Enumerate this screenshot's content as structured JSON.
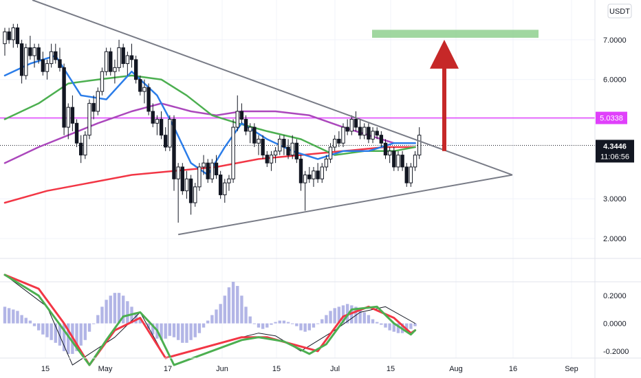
{
  "currency": "USDT",
  "last_price": "4.3446",
  "countdown": "11:06:56",
  "level_label": "5.0338",
  "colors": {
    "up": "#ffffff",
    "down": "#131722",
    "ema_blue": "#2b7de9",
    "ema_green": "#4caf50",
    "ema_purple": "#ab47bc",
    "ema_red": "#f23645",
    "level": "#e040fb",
    "target_zone": "#8fd08f",
    "arrow": "#c62828",
    "triangle": "#787b86",
    "macd": "#4caf50",
    "signal": "#f23645",
    "histogram": "#b2b5e6"
  },
  "time_axis": [
    "15",
    "May",
    "17",
    "Jun",
    "15",
    "Jul",
    "15",
    "Aug",
    "16",
    "Sep"
  ],
  "chart_data": [
    {
      "type": "candlestick",
      "y_ticks": [
        "7.0000",
        "6.0000",
        "5.0000",
        "3.0000",
        "2.0000"
      ],
      "ylim": [
        1.5,
        8.0
      ],
      "horizontal_level": 5.0338,
      "current_price": 4.3446,
      "target_zone": [
        7.05,
        7.25
      ],
      "triangle": {
        "upper": [
          [
            0,
            8.0
          ],
          [
            120,
            3.6
          ]
        ],
        "lower": [
          [
            41,
            2.1
          ],
          [
            120,
            3.6
          ]
        ]
      },
      "candles": [
        [
          6.9,
          7.3,
          6.6,
          7.2
        ],
        [
          7.2,
          7.3,
          6.9,
          7.0
        ],
        [
          7.0,
          7.4,
          6.8,
          7.3
        ],
        [
          7.3,
          7.4,
          6.8,
          6.9
        ],
        [
          6.9,
          7.0,
          5.9,
          6.1
        ],
        [
          6.1,
          6.9,
          6.0,
          6.8
        ],
        [
          6.8,
          7.1,
          6.5,
          6.6
        ],
        [
          6.6,
          6.9,
          6.3,
          6.8
        ],
        [
          6.8,
          6.9,
          6.4,
          6.5
        ],
        [
          6.5,
          6.7,
          6.1,
          6.2
        ],
        [
          6.2,
          6.5,
          6.0,
          6.4
        ],
        [
          6.4,
          6.9,
          6.3,
          6.7
        ],
        [
          6.7,
          6.9,
          6.4,
          6.5
        ],
        [
          6.5,
          6.8,
          6.2,
          6.3
        ],
        [
          6.3,
          6.4,
          4.6,
          4.8
        ],
        [
          4.8,
          5.4,
          4.5,
          5.3
        ],
        [
          5.3,
          5.6,
          4.7,
          4.9
        ],
        [
          4.9,
          5.0,
          4.3,
          4.4
        ],
        [
          4.4,
          4.6,
          3.9,
          4.1
        ],
        [
          4.1,
          4.7,
          4.0,
          4.6
        ],
        [
          4.6,
          5.5,
          4.5,
          5.4
        ],
        [
          5.4,
          5.6,
          5.0,
          5.2
        ],
        [
          5.2,
          5.8,
          5.1,
          5.7
        ],
        [
          5.7,
          6.3,
          5.6,
          6.2
        ],
        [
          6.2,
          6.8,
          6.1,
          6.7
        ],
        [
          6.7,
          6.8,
          6.1,
          6.2
        ],
        [
          6.2,
          6.5,
          5.9,
          6.3
        ],
        [
          6.3,
          7.0,
          6.2,
          6.8
        ],
        [
          6.8,
          6.9,
          6.3,
          6.4
        ],
        [
          6.4,
          6.7,
          6.1,
          6.6
        ],
        [
          6.6,
          6.9,
          6.3,
          6.5
        ],
        [
          6.5,
          6.6,
          5.9,
          6.0
        ],
        [
          6.0,
          6.1,
          5.6,
          5.7
        ],
        [
          5.7,
          6.0,
          5.4,
          5.8
        ],
        [
          5.8,
          5.9,
          5.1,
          5.2
        ],
        [
          5.2,
          5.4,
          4.8,
          4.9
        ],
        [
          4.9,
          5.1,
          4.6,
          5.0
        ],
        [
          5.0,
          5.2,
          4.5,
          4.6
        ],
        [
          4.6,
          4.8,
          4.2,
          4.3
        ],
        [
          4.3,
          5.1,
          4.2,
          5.0
        ],
        [
          5.0,
          5.1,
          3.2,
          3.5
        ],
        [
          3.5,
          3.9,
          2.4,
          3.8
        ],
        [
          3.8,
          3.9,
          3.1,
          3.2
        ],
        [
          3.2,
          3.7,
          3.0,
          3.5
        ],
        [
          3.5,
          3.6,
          2.6,
          2.9
        ],
        [
          2.9,
          3.4,
          2.8,
          3.3
        ],
        [
          3.3,
          3.9,
          3.2,
          3.8
        ],
        [
          3.8,
          4.1,
          3.6,
          3.9
        ],
        [
          3.9,
          4.0,
          3.4,
          3.5
        ],
        [
          3.5,
          4.0,
          3.4,
          3.9
        ],
        [
          3.9,
          4.1,
          3.5,
          3.6
        ],
        [
          3.6,
          3.7,
          3.0,
          3.1
        ],
        [
          3.1,
          3.5,
          2.9,
          3.4
        ],
        [
          3.4,
          3.6,
          3.2,
          3.5
        ],
        [
          3.5,
          5.0,
          3.4,
          4.8
        ],
        [
          4.8,
          5.6,
          4.7,
          5.2
        ],
        [
          5.2,
          5.4,
          4.9,
          5.0
        ],
        [
          5.0,
          5.1,
          4.6,
          4.7
        ],
        [
          4.7,
          4.9,
          4.4,
          4.8
        ],
        [
          4.8,
          4.9,
          4.3,
          4.4
        ],
        [
          4.4,
          4.6,
          4.1,
          4.5
        ],
        [
          4.5,
          4.6,
          4.0,
          4.1
        ],
        [
          4.1,
          4.2,
          3.8,
          3.9
        ],
        [
          3.9,
          4.2,
          3.7,
          4.1
        ],
        [
          4.1,
          4.3,
          3.9,
          4.2
        ],
        [
          4.2,
          4.6,
          4.1,
          4.5
        ],
        [
          4.5,
          4.6,
          4.1,
          4.3
        ],
        [
          4.3,
          4.5,
          4.0,
          4.1
        ],
        [
          4.1,
          4.6,
          4.0,
          4.4
        ],
        [
          4.4,
          4.5,
          3.9,
          4.0
        ],
        [
          4.0,
          4.1,
          3.2,
          3.4
        ],
        [
          3.4,
          3.7,
          2.7,
          3.6
        ],
        [
          3.6,
          3.8,
          3.4,
          3.5
        ],
        [
          3.5,
          3.8,
          3.3,
          3.7
        ],
        [
          3.7,
          3.9,
          3.4,
          3.5
        ],
        [
          3.5,
          3.9,
          3.4,
          3.8
        ],
        [
          3.8,
          4.1,
          3.7,
          4.0
        ],
        [
          4.0,
          4.4,
          3.9,
          4.3
        ],
        [
          4.3,
          4.6,
          4.2,
          4.5
        ],
        [
          4.5,
          4.7,
          4.3,
          4.4
        ],
        [
          4.4,
          4.9,
          4.3,
          4.8
        ],
        [
          4.8,
          5.0,
          4.6,
          4.7
        ],
        [
          4.7,
          5.1,
          4.6,
          5.0
        ],
        [
          5.0,
          5.2,
          4.7,
          4.8
        ],
        [
          4.8,
          5.0,
          4.5,
          4.6
        ],
        [
          4.6,
          4.9,
          4.5,
          4.8
        ],
        [
          4.8,
          4.9,
          4.4,
          4.5
        ],
        [
          4.5,
          4.8,
          4.4,
          4.7
        ],
        [
          4.7,
          4.8,
          4.5,
          4.6
        ],
        [
          4.6,
          4.7,
          4.3,
          4.4
        ],
        [
          4.4,
          4.5,
          4.0,
          4.1
        ],
        [
          4.1,
          4.3,
          3.9,
          4.2
        ],
        [
          4.2,
          4.3,
          3.7,
          3.8
        ],
        [
          3.8,
          4.2,
          3.7,
          4.1
        ],
        [
          4.1,
          4.2,
          3.7,
          3.8
        ],
        [
          3.8,
          3.9,
          3.3,
          3.4
        ],
        [
          3.4,
          3.9,
          3.3,
          3.8
        ],
        [
          3.8,
          4.2,
          3.7,
          4.1
        ],
        [
          4.1,
          4.8,
          4.0,
          4.6
        ]
      ],
      "ema_blue": [
        [
          0,
          6.1
        ],
        [
          6,
          6.4
        ],
        [
          12,
          6.6
        ],
        [
          18,
          5.6
        ],
        [
          24,
          5.5
        ],
        [
          30,
          6.2
        ],
        [
          36,
          5.6
        ],
        [
          40,
          4.8
        ],
        [
          44,
          3.9
        ],
        [
          48,
          3.6
        ],
        [
          52,
          4.3
        ],
        [
          56,
          4.9
        ],
        [
          62,
          4.5
        ],
        [
          68,
          4.2
        ],
        [
          74,
          4.0
        ],
        [
          80,
          4.2
        ],
        [
          86,
          4.2
        ],
        [
          92,
          4.4
        ],
        [
          97,
          4.4
        ]
      ],
      "ema_green": [
        [
          0,
          5.0
        ],
        [
          8,
          5.4
        ],
        [
          15,
          5.9
        ],
        [
          22,
          6.0
        ],
        [
          30,
          6.1
        ],
        [
          37,
          6.0
        ],
        [
          43,
          5.6
        ],
        [
          49,
          5.1
        ],
        [
          55,
          4.9
        ],
        [
          62,
          4.7
        ],
        [
          70,
          4.5
        ],
        [
          78,
          4.1
        ],
        [
          85,
          4.2
        ],
        [
          92,
          4.2
        ],
        [
          97,
          4.3
        ]
      ],
      "ema_purple": [
        [
          0,
          3.9
        ],
        [
          8,
          4.3
        ],
        [
          15,
          4.6
        ],
        [
          22,
          4.9
        ],
        [
          30,
          5.2
        ],
        [
          37,
          5.4
        ],
        [
          44,
          5.2
        ],
        [
          50,
          5.1
        ],
        [
          56,
          5.2
        ],
        [
          64,
          5.2
        ],
        [
          72,
          5.1
        ],
        [
          80,
          4.8
        ],
        [
          86,
          4.6
        ],
        [
          92,
          4.4
        ],
        [
          97,
          4.4
        ]
      ],
      "ema_red": [
        [
          0,
          2.9
        ],
        [
          10,
          3.2
        ],
        [
          20,
          3.4
        ],
        [
          30,
          3.6
        ],
        [
          40,
          3.7
        ],
        [
          50,
          3.8
        ],
        [
          60,
          4.0
        ],
        [
          70,
          4.1
        ],
        [
          80,
          4.2
        ],
        [
          90,
          4.3
        ],
        [
          97,
          4.3
        ]
      ]
    },
    {
      "type": "macd",
      "y_ticks": [
        "0.2000",
        "0.0000",
        "-0.2000"
      ],
      "ylim": [
        -0.25,
        0.3
      ],
      "histogram": [
        0.12,
        0.11,
        0.1,
        0.09,
        0.06,
        0.04,
        0.02,
        -0.02,
        -0.05,
        -0.08,
        -0.1,
        -0.12,
        -0.14,
        -0.16,
        -0.2,
        -0.22,
        -0.22,
        -0.2,
        -0.16,
        -0.12,
        -0.06,
        0.0,
        0.06,
        0.12,
        0.17,
        0.2,
        0.22,
        0.22,
        0.2,
        0.16,
        0.12,
        0.08,
        0.04,
        0.0,
        -0.04,
        -0.08,
        -0.11,
        -0.12,
        -0.11,
        -0.09,
        -0.1,
        -0.12,
        -0.14,
        -0.14,
        -0.12,
        -0.1,
        -0.07,
        -0.03,
        0.02,
        0.06,
        0.1,
        0.14,
        0.2,
        0.26,
        0.3,
        0.27,
        0.2,
        0.12,
        0.05,
        0.0,
        -0.03,
        -0.04,
        -0.03,
        -0.01,
        0.01,
        0.02,
        0.02,
        0.01,
        0.0,
        -0.02,
        -0.05,
        -0.06,
        -0.05,
        -0.03,
        0.0,
        0.03,
        0.06,
        0.09,
        0.11,
        0.12,
        0.13,
        0.14,
        0.13,
        0.12,
        0.1,
        0.08,
        0.06,
        0.03,
        0.01,
        -0.01,
        -0.03,
        -0.05,
        -0.06,
        -0.07,
        -0.07,
        -0.06,
        -0.04,
        -0.02
      ],
      "macd": [
        [
          0,
          0.4
        ],
        [
          8,
          0.2
        ],
        [
          14,
          -0.05
        ],
        [
          20,
          -0.3
        ],
        [
          24,
          -0.12
        ],
        [
          28,
          0.05
        ],
        [
          32,
          0.08
        ],
        [
          36,
          -0.05
        ],
        [
          40,
          -0.3
        ],
        [
          56,
          -0.12
        ],
        [
          60,
          -0.1
        ],
        [
          66,
          -0.13
        ],
        [
          72,
          -0.22
        ],
        [
          76,
          -0.15
        ],
        [
          82,
          0.1
        ],
        [
          88,
          0.12
        ],
        [
          92,
          0.0
        ],
        [
          96,
          -0.08
        ],
        [
          97,
          -0.05
        ]
      ],
      "signal": [
        [
          0,
          0.4
        ],
        [
          8,
          0.25
        ],
        [
          14,
          0.0
        ],
        [
          20,
          -0.3
        ],
        [
          26,
          -0.05
        ],
        [
          32,
          0.04
        ],
        [
          38,
          -0.25
        ],
        [
          56,
          -0.1
        ],
        [
          62,
          -0.1
        ],
        [
          68,
          -0.15
        ],
        [
          74,
          -0.2
        ],
        [
          80,
          0.05
        ],
        [
          86,
          0.12
        ],
        [
          92,
          0.04
        ],
        [
          96,
          -0.07
        ],
        [
          97,
          -0.05
        ]
      ],
      "slow_line": [
        [
          0,
          0.6
        ],
        [
          10,
          0.12
        ],
        [
          16,
          -0.3
        ],
        [
          26,
          -0.1
        ],
        [
          32,
          0.08
        ],
        [
          38,
          -0.25
        ],
        [
          56,
          -0.1
        ],
        [
          60,
          -0.07
        ],
        [
          64,
          -0.09
        ],
        [
          70,
          -0.2
        ],
        [
          78,
          -0.05
        ],
        [
          84,
          0.08
        ],
        [
          90,
          0.12
        ],
        [
          97,
          0.0
        ]
      ]
    }
  ]
}
